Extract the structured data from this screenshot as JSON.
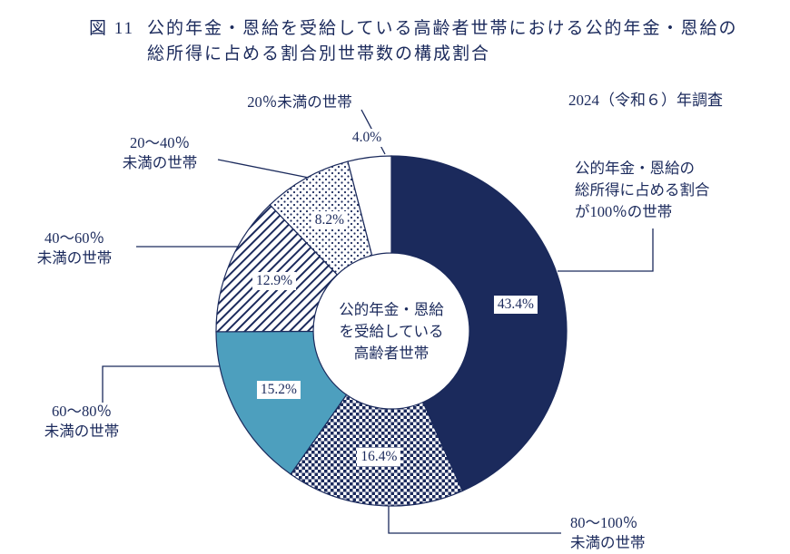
{
  "figure": {
    "fig_label": "図 11",
    "title_line1": "公的年金・恩給を受給している高齢者世帯における公的年金・恩給の",
    "title_line2": "総所得に占める割合別世帯数の構成割合",
    "survey_note": "2024（令和６）年調査",
    "center_label": "公的年金・恩給\nを受給している\n高齢者世帯"
  },
  "chart_data": {
    "type": "pie",
    "subtype": "donut",
    "title": "公的年金・恩給を受給している高齢者世帯における公的年金・恩給の総所得に占める割合別世帯数の構成割合",
    "unit": "%",
    "start_angle_deg": 0,
    "direction": "clockwise",
    "colors": {
      "navy": "#1b2a5c",
      "teal": "#4d9fbe",
      "background": "#ffffff"
    },
    "segments": [
      {
        "label": "公的年金・恩給の総所得に占める割合が100％の世帯",
        "value": 43.4,
        "value_label": "43.4%",
        "style": "solid-navy",
        "label_radius": 140
      },
      {
        "label": "80～100％未満の世帯",
        "value": 16.4,
        "value_label": "16.4%",
        "style": "checker",
        "label_radius": 140
      },
      {
        "label": "60～80％未満の世帯",
        "value": 15.2,
        "value_label": "15.2%",
        "style": "solid-teal",
        "label_radius": 140
      },
      {
        "label": "40～60％未満の世帯",
        "value": 12.9,
        "value_label": "12.9%",
        "style": "diagonal-hatch",
        "label_radius": 140
      },
      {
        "label": "20～40％未満の世帯",
        "value": 8.2,
        "value_label": "8.2%",
        "style": "dots",
        "label_radius": 140
      },
      {
        "label": "20％未満の世帯",
        "value": 4.0,
        "value_label": "4.0%",
        "style": "white",
        "label_radius": 215
      }
    ]
  },
  "callouts": {
    "under20": "20％未満の世帯",
    "p20_40": "20～40％\n未満の世帯",
    "p40_60": "40～60％\n未満の世帯",
    "p60_80": "60～80％\n未満の世帯",
    "p80_100": "80～100％\n未満の世帯",
    "p100": "公的年金・恩給の\n総所得に占める割合\nが100％の世帯"
  }
}
